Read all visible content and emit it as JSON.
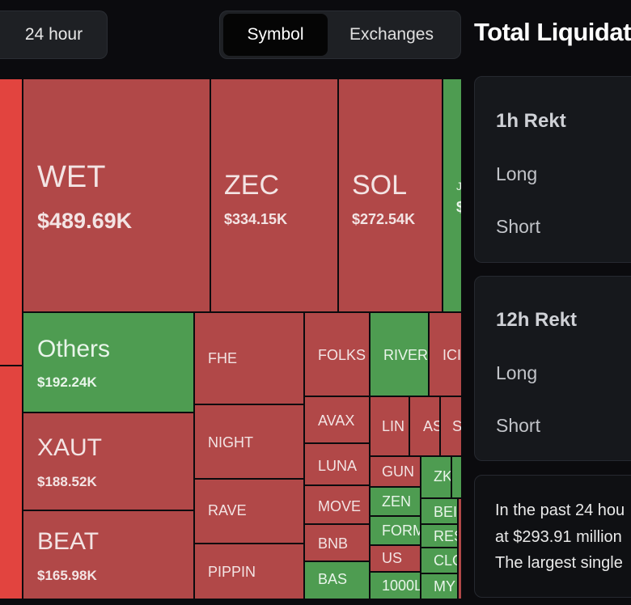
{
  "timeframe": {
    "label": "24 hour"
  },
  "view_toggle": {
    "options": [
      "Symbol",
      "Exchanges"
    ],
    "selected": "Symbol"
  },
  "header": {
    "title": "Total Liquidat"
  },
  "treemap": {
    "tiles": [
      {
        "symbol": "",
        "value": "",
        "color": "bright"
      },
      {
        "symbol": "",
        "value": "",
        "color": "bright"
      },
      {
        "symbol": "WET",
        "value": "$489.69K",
        "color": "red"
      },
      {
        "symbol": "ZEC",
        "value": "$334.15K",
        "color": "red"
      },
      {
        "symbol": "SOL",
        "value": "$272.54K",
        "color": "red"
      },
      {
        "symbol": "J",
        "value": "$",
        "color": "green"
      },
      {
        "symbol": "Others",
        "value": "$192.24K",
        "color": "green"
      },
      {
        "symbol": "XAUT",
        "value": "$188.52K",
        "color": "red"
      },
      {
        "symbol": "BEAT",
        "value": "$165.98K",
        "color": "red"
      },
      {
        "symbol": "FHE",
        "value": "",
        "color": "red"
      },
      {
        "symbol": "NIGHT",
        "value": "",
        "color": "red"
      },
      {
        "symbol": "RAVE",
        "value": "",
        "color": "red"
      },
      {
        "symbol": "PIPPIN",
        "value": "",
        "color": "red"
      },
      {
        "symbol": "FOLKS",
        "value": "",
        "color": "red"
      },
      {
        "symbol": "AVAX",
        "value": "",
        "color": "red"
      },
      {
        "symbol": "LUNA",
        "value": "",
        "color": "red"
      },
      {
        "symbol": "MOVE",
        "value": "",
        "color": "red"
      },
      {
        "symbol": "BNB",
        "value": "",
        "color": "red"
      },
      {
        "symbol": "BAS",
        "value": "",
        "color": "green"
      },
      {
        "symbol": "RIVER",
        "value": "",
        "color": "green"
      },
      {
        "symbol": "ICI",
        "value": "",
        "color": "red"
      },
      {
        "symbol": "LIN",
        "value": "",
        "color": "red"
      },
      {
        "symbol": "AS",
        "value": "",
        "color": "red"
      },
      {
        "symbol": "S",
        "value": "",
        "color": "red"
      },
      {
        "symbol": "GUN",
        "value": "",
        "color": "red"
      },
      {
        "symbol": "ZK",
        "value": "",
        "color": "green"
      },
      {
        "symbol": "",
        "value": "",
        "color": "green"
      },
      {
        "symbol": "ZEN",
        "value": "",
        "color": "green"
      },
      {
        "symbol": "BEI",
        "value": "",
        "color": "green"
      },
      {
        "symbol": "FORM",
        "value": "",
        "color": "green"
      },
      {
        "symbol": "RES",
        "value": "",
        "color": "green"
      },
      {
        "symbol": "US",
        "value": "",
        "color": "red"
      },
      {
        "symbol": "CLO",
        "value": "",
        "color": "green"
      },
      {
        "symbol": "1000L",
        "value": "",
        "color": "green"
      },
      {
        "symbol": "MY",
        "value": "",
        "color": "green"
      },
      {
        "symbol": "",
        "value": "",
        "color": "red"
      }
    ]
  },
  "stats": {
    "cards": [
      {
        "title": "1h Rekt",
        "long_label": "Long",
        "short_label": "Short"
      },
      {
        "title": "12h Rekt",
        "long_label": "Long",
        "short_label": "Short"
      }
    ],
    "summary_lines": [
      "In the past 24 hou",
      "at $293.91 million",
      "The largest single"
    ]
  },
  "colors": {
    "red_tile": "#b14848",
    "bright_red_tile": "#e2443f",
    "green_tile": "#4e9c51",
    "background": "#0b0b0e"
  }
}
